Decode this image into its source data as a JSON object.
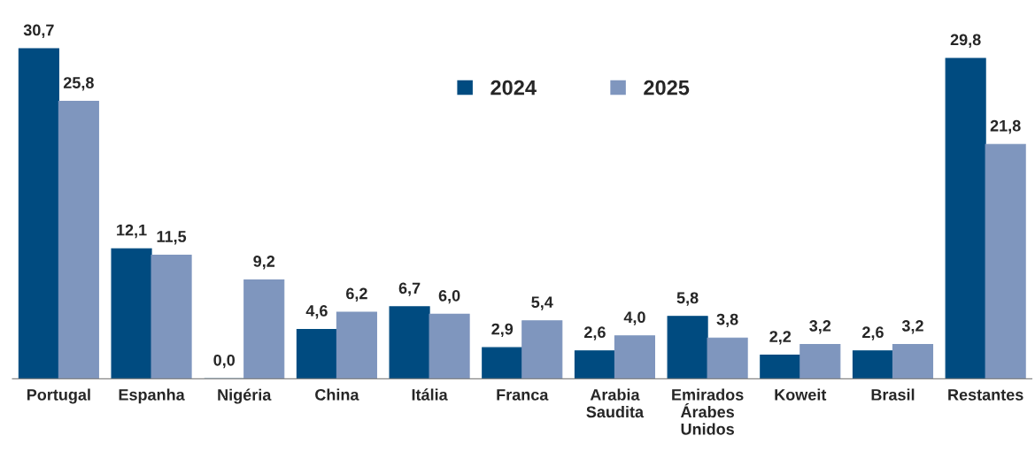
{
  "chart_data": {
    "type": "bar",
    "categories": [
      "Portugal",
      "Espanha",
      "Nigéria",
      "China",
      "Itália",
      "Franca",
      "Arabia\nSaudita",
      "Emirados\nÁrabes\nUnidos",
      "Koweit",
      "Brasil",
      "Restantes"
    ],
    "series": [
      {
        "name": "2024",
        "color": "#004b80",
        "values": [
          30.7,
          12.1,
          0.0,
          4.6,
          6.7,
          2.9,
          2.6,
          5.8,
          2.2,
          2.6,
          29.8
        ],
        "value_labels": [
          "30,7",
          "12,1",
          "0,0",
          "4,6",
          "6,7",
          "2,9",
          "2,6",
          "5,8",
          "2,2",
          "2,6",
          "29,8"
        ]
      },
      {
        "name": "2025",
        "color": "#7f96be",
        "values": [
          25.8,
          11.5,
          9.2,
          6.2,
          6.0,
          5.4,
          4.0,
          3.8,
          3.2,
          3.2,
          21.8
        ],
        "value_labels": [
          "25,8",
          "11,5",
          "9,2",
          "6,2",
          "6,0",
          "5,4",
          "4,0",
          "3,8",
          "3,2",
          "3,2",
          "21,8"
        ]
      }
    ],
    "legend": "top",
    "grid": false
  }
}
